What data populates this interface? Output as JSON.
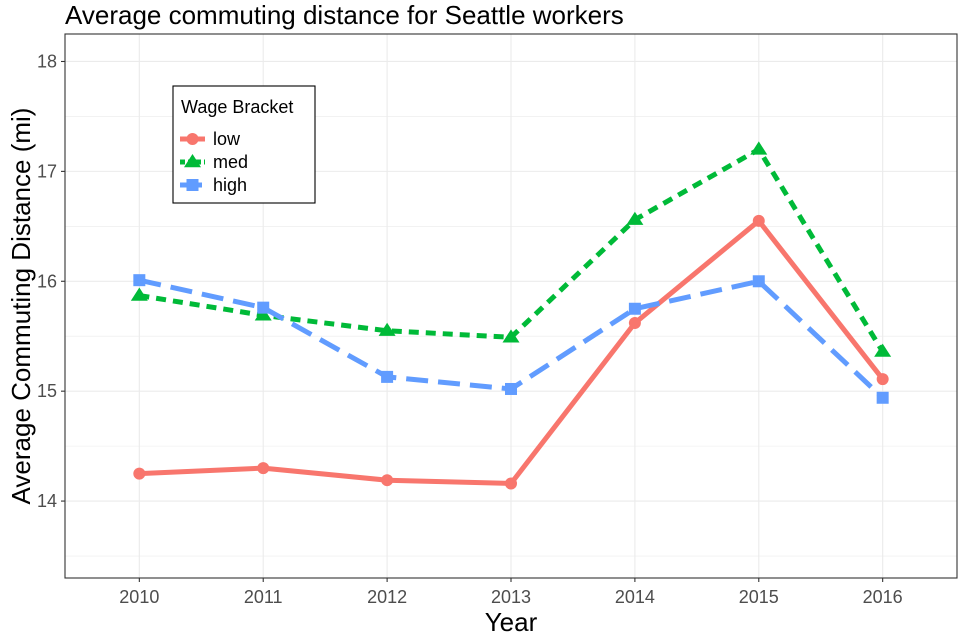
{
  "chart_data": {
    "type": "line",
    "title": "Average commuting distance for Seattle workers",
    "xlabel": "Year",
    "ylabel": "Average Commuting Distance (mi)",
    "categories": [
      "2010",
      "2011",
      "2012",
      "2013",
      "2014",
      "2015",
      "2016"
    ],
    "ylim": [
      13.3,
      18.25
    ],
    "yticks": [
      14,
      15,
      16,
      17,
      18
    ],
    "grid": true,
    "legend": {
      "title": "Wage Bracket",
      "position": "top-left"
    },
    "series": [
      {
        "name": "low",
        "color": "#F8766D",
        "marker": "circle",
        "dash": "solid",
        "values": [
          14.25,
          14.3,
          14.19,
          14.16,
          15.62,
          16.55,
          15.11
        ]
      },
      {
        "name": "med",
        "color": "#00BA38",
        "marker": "triangle",
        "dash": "dotted",
        "values": [
          15.87,
          15.69,
          15.55,
          15.49,
          16.56,
          17.2,
          15.36
        ]
      },
      {
        "name": "high",
        "color": "#619CFF",
        "marker": "square",
        "dash": "dashed",
        "values": [
          16.01,
          15.76,
          15.13,
          15.02,
          15.75,
          16.0,
          14.94
        ]
      }
    ]
  }
}
